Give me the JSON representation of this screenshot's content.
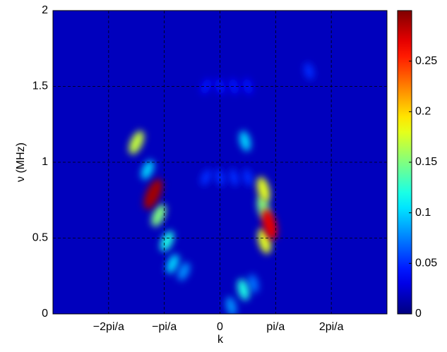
{
  "chart_data": {
    "type": "heatmap",
    "xlabel": "k",
    "ylabel": "ν (MHz)",
    "xlim": [
      -3,
      3
    ],
    "xticks": [
      {
        "value": -2,
        "label": "−2pi/a"
      },
      {
        "value": -1,
        "label": "−pi/a"
      },
      0,
      {
        "value": 1,
        "label": "pi/a"
      },
      {
        "value": 2,
        "label": "2pi/a"
      }
    ],
    "ylim": [
      0,
      2
    ],
    "yticks": [
      0,
      0.5,
      1,
      1.5,
      2
    ],
    "clim": [
      0,
      0.3
    ],
    "cticks": [
      0,
      0.05,
      0.1,
      0.15,
      0.2,
      0.25
    ],
    "grid": true,
    "colormap": "jet",
    "x": [
      -0.25,
      0,
      0.25,
      0.5,
      -0.25,
      0,
      0.25,
      0.5,
      1.6,
      0.2,
      0.6,
      -0.65,
      -0.85,
      0.42,
      0.45,
      -1.3,
      -0.95,
      0.78,
      -1.1,
      -1.5,
      0.8,
      0.78,
      0.89,
      -1.2
    ],
    "y": [
      1.5,
      1.5,
      1.5,
      1.5,
      0.9,
      0.9,
      0.9,
      0.9,
      1.6,
      0.05,
      0.2,
      0.28,
      0.33,
      0.16,
      1.14,
      0.95,
      0.48,
      0.7,
      0.65,
      1.13,
      0.48,
      0.82,
      0.59,
      0.79
    ],
    "values": [
      0.04,
      0.04,
      0.04,
      0.04,
      0.05,
      0.05,
      0.05,
      0.05,
      0.05,
      0.08,
      0.07,
      0.08,
      0.1,
      0.12,
      0.1,
      0.1,
      0.12,
      0.15,
      0.15,
      0.17,
      0.18,
      0.18,
      0.27,
      0.29
    ]
  }
}
